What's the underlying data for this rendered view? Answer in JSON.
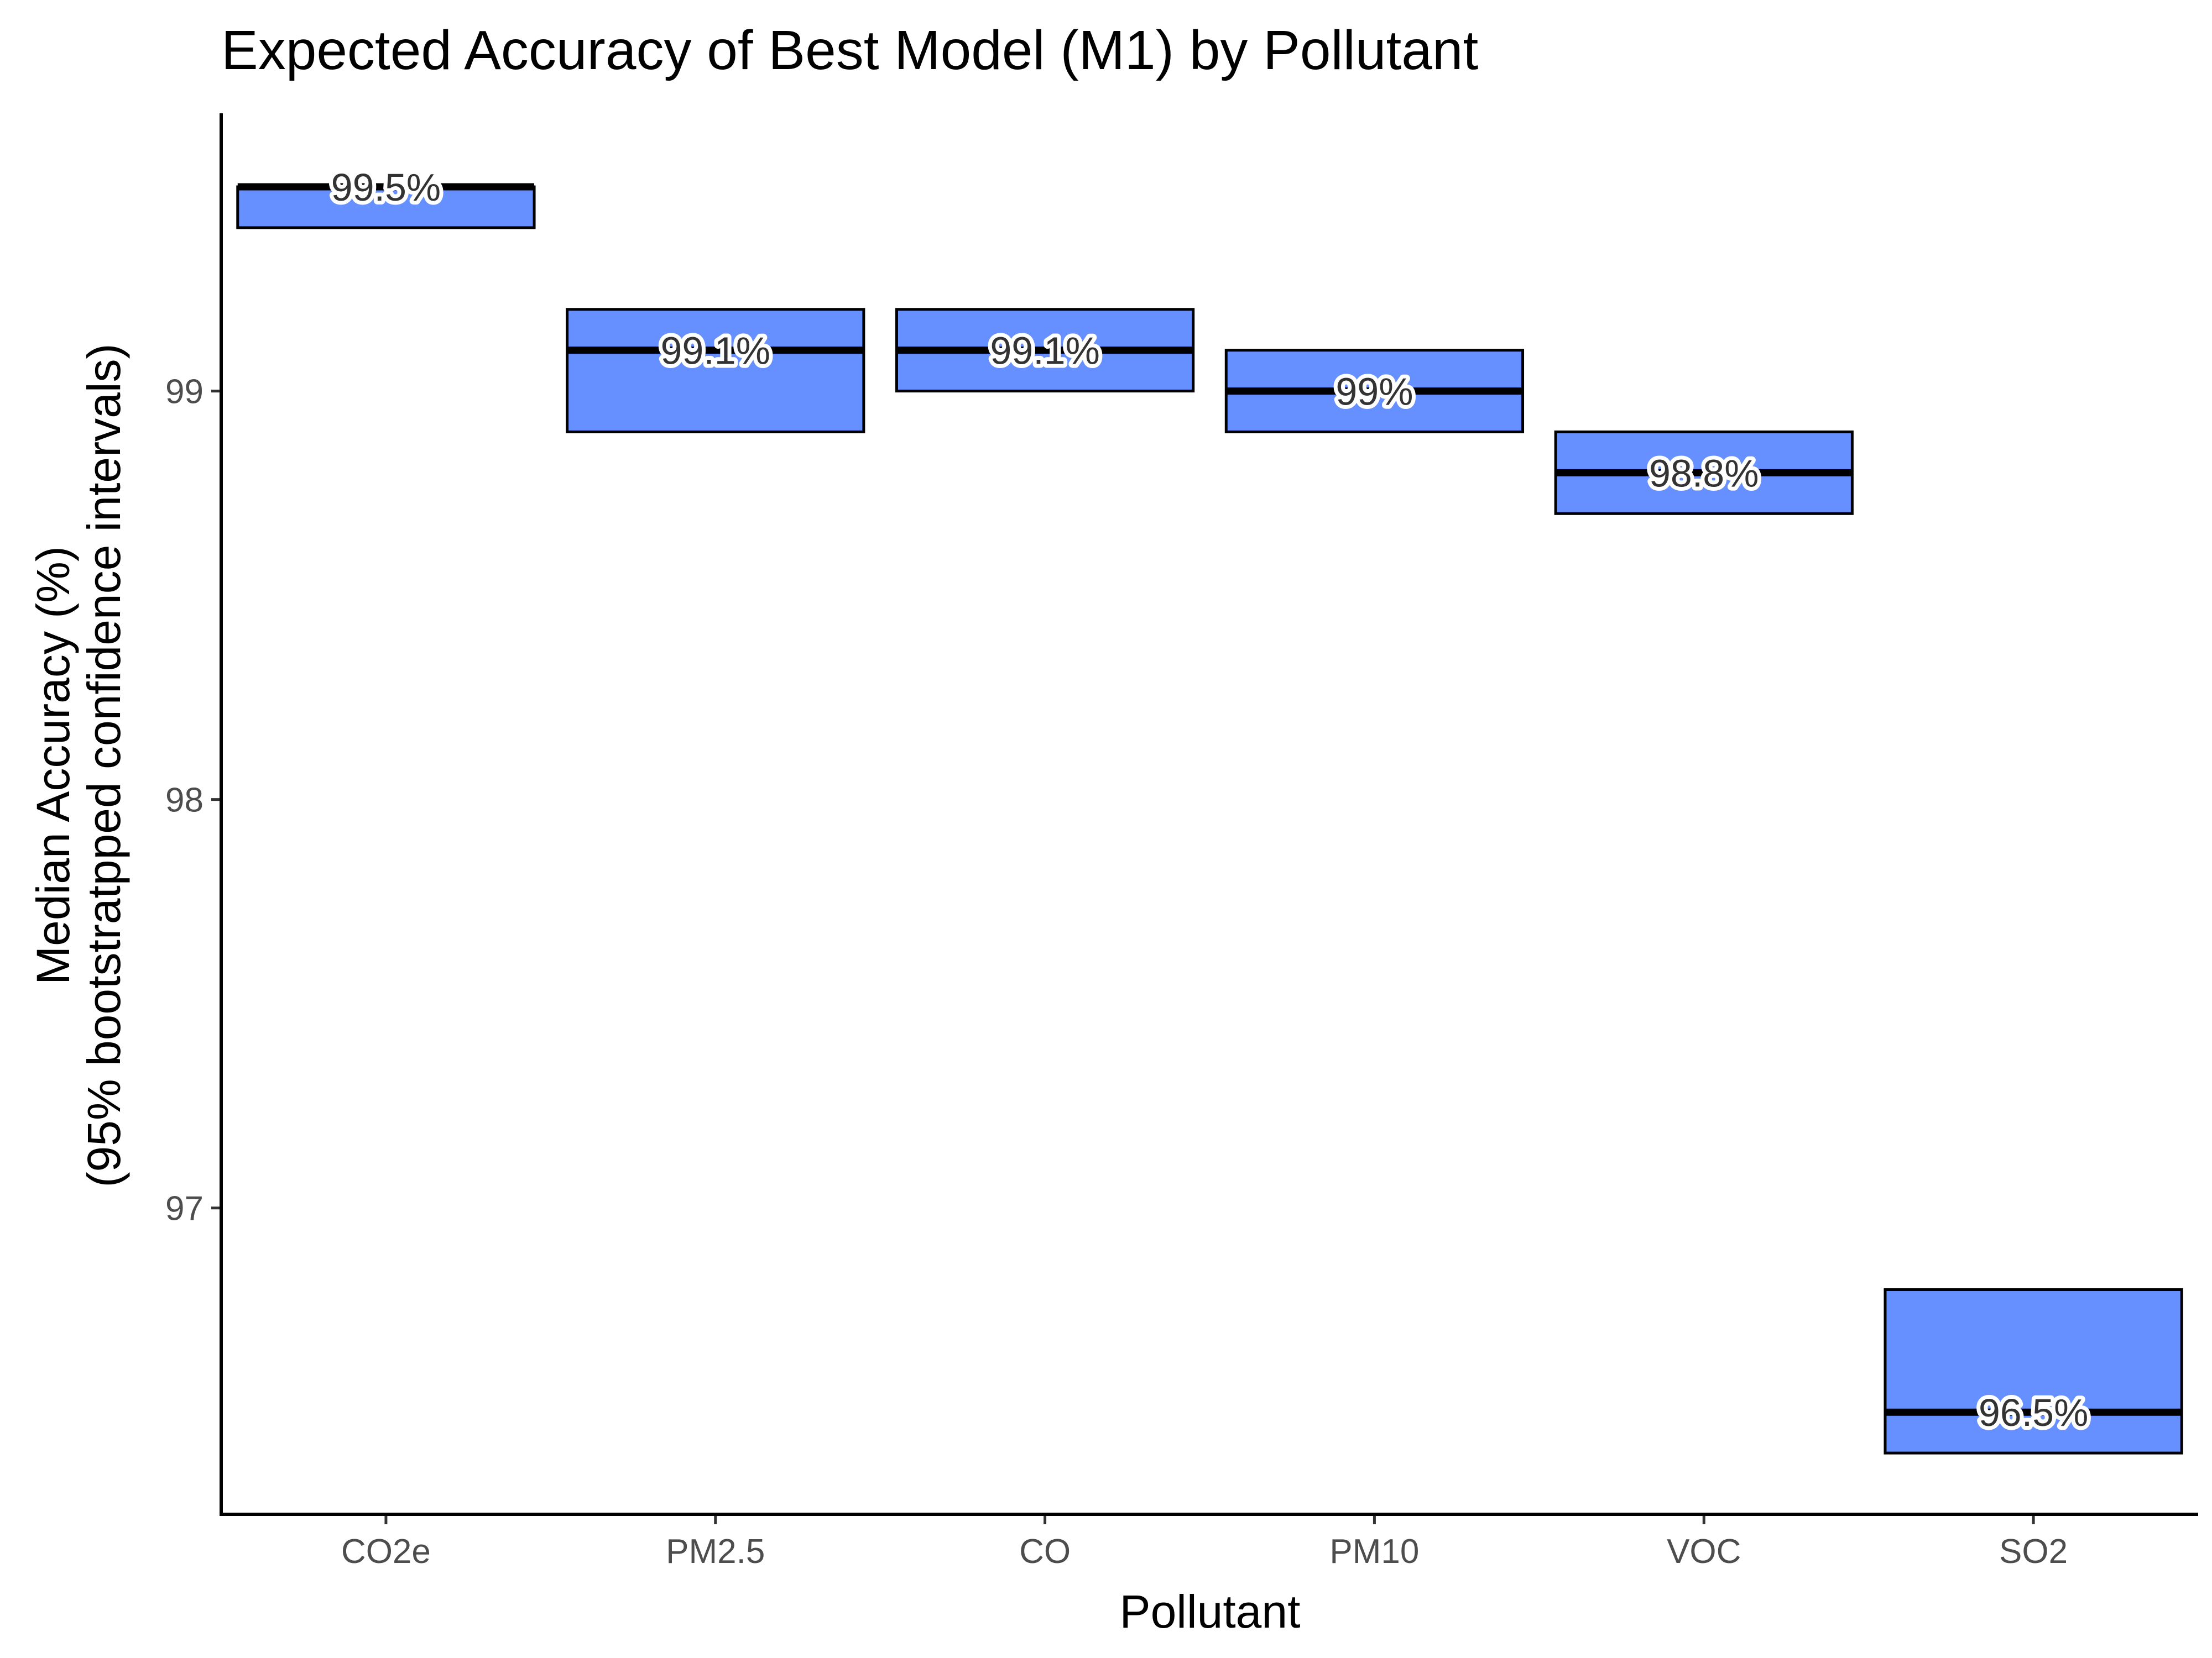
{
  "chart_data": {
    "type": "crossbar",
    "title": "Expected Accuracy of Best Model (M1) by Pollutant",
    "xlabel": "Pollutant",
    "ylabel_lines": [
      "Median Accuracy (%)",
      "(95% bootstratpped confidence intervals)"
    ],
    "ylim": [
      96.25,
      99.68
    ],
    "yticks": [
      97,
      98,
      99
    ],
    "yticks_labels": [
      "97",
      "98",
      "99"
    ],
    "grid": false,
    "fill_color": "#6690ff",
    "edge_color": "#000000",
    "categories": [
      "CO2e",
      "PM2.5",
      "CO",
      "PM10",
      "VOC",
      "SO2"
    ],
    "medians": [
      99.5,
      99.1,
      99.1,
      99.0,
      98.8,
      96.5
    ],
    "lower": [
      99.4,
      98.9,
      99.0,
      98.9,
      98.7,
      96.4
    ],
    "upper": [
      99.5,
      99.2,
      99.2,
      99.1,
      98.9,
      96.8
    ],
    "labels": [
      "99.5%",
      "99.1%",
      "99.1%",
      "99%",
      "98.8%",
      "96.5%"
    ]
  }
}
